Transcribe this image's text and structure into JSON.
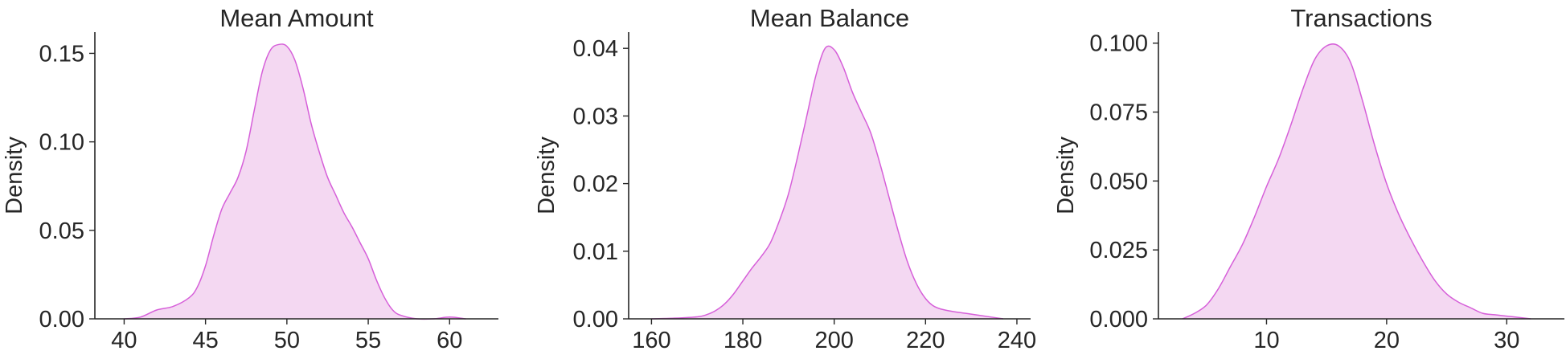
{
  "style": {
    "line_color": "#d65fd9",
    "fill_color": "#f4d8f2",
    "text_color": "#262626"
  },
  "chart_data": [
    {
      "type": "area",
      "title": "Mean Amount",
      "xlabel": "",
      "ylabel": "Density",
      "xlim": [
        38.2,
        63.0
      ],
      "ylim": [
        0,
        0.162
      ],
      "xticks": [
        40,
        45,
        50,
        55,
        60
      ],
      "xtick_labels": [
        "40",
        "45",
        "50",
        "55",
        "60"
      ],
      "yticks": [
        0,
        0.05,
        0.1,
        0.15
      ],
      "ytick_labels": [
        "0.00",
        "0.05",
        "0.10",
        "0.15"
      ],
      "grid": false,
      "x": [
        40.0,
        41.0,
        42.0,
        43.0,
        44.0,
        44.5,
        45.0,
        45.5,
        46.0,
        46.5,
        47.0,
        47.5,
        48.0,
        48.5,
        49.0,
        49.5,
        50.0,
        50.5,
        51.0,
        51.5,
        52.0,
        52.5,
        53.0,
        53.5,
        54.0,
        54.5,
        55.0,
        55.5,
        56.0,
        56.5,
        57.0,
        58.0,
        59.0,
        60.0,
        61.0
      ],
      "y": [
        0.0,
        0.001,
        0.005,
        0.007,
        0.012,
        0.018,
        0.03,
        0.047,
        0.062,
        0.071,
        0.08,
        0.095,
        0.118,
        0.14,
        0.152,
        0.155,
        0.154,
        0.146,
        0.13,
        0.11,
        0.094,
        0.08,
        0.07,
        0.06,
        0.052,
        0.043,
        0.034,
        0.022,
        0.012,
        0.005,
        0.002,
        0.0,
        0.0,
        0.001,
        0.0
      ]
    },
    {
      "type": "area",
      "title": "Mean Balance",
      "xlabel": "",
      "ylabel": "Density",
      "xlim": [
        155,
        243
      ],
      "ylim": [
        0,
        0.0424
      ],
      "xticks": [
        160,
        180,
        200,
        220,
        240
      ],
      "xtick_labels": [
        "160",
        "180",
        "200",
        "220",
        "240"
      ],
      "yticks": [
        0,
        0.01,
        0.02,
        0.03,
        0.04
      ],
      "ytick_labels": [
        "0.00",
        "0.01",
        "0.02",
        "0.03",
        "0.04"
      ],
      "grid": false,
      "x": [
        160,
        165,
        170,
        172,
        174,
        176,
        178,
        180,
        182,
        184,
        186,
        188,
        190,
        192,
        194,
        196,
        198,
        200,
        202,
        204,
        206,
        208,
        210,
        212,
        214,
        216,
        218,
        220,
        222,
        225,
        230,
        235,
        237
      ],
      "y": [
        0.0,
        0.0001,
        0.0003,
        0.0006,
        0.0012,
        0.0022,
        0.0037,
        0.0056,
        0.0075,
        0.0092,
        0.0112,
        0.0145,
        0.0185,
        0.024,
        0.03,
        0.036,
        0.04,
        0.0398,
        0.0372,
        0.0335,
        0.0305,
        0.0275,
        0.023,
        0.018,
        0.013,
        0.0085,
        0.0052,
        0.003,
        0.0018,
        0.0012,
        0.0007,
        0.0002,
        0.0
      ]
    },
    {
      "type": "area",
      "title": "Transactions",
      "xlabel": "",
      "ylabel": "Density",
      "xlim": [
        1.0,
        34.8
      ],
      "ylim": [
        0,
        0.104
      ],
      "xticks": [
        10,
        20,
        30
      ],
      "xtick_labels": [
        "10",
        "20",
        "30"
      ],
      "yticks": [
        0,
        0.025,
        0.05,
        0.075,
        0.1
      ],
      "ytick_labels": [
        "0.000",
        "0.025",
        "0.050",
        "0.075",
        "0.100"
      ],
      "grid": false,
      "x": [
        3,
        4,
        5,
        6,
        7,
        8,
        9,
        10,
        11,
        12,
        13,
        14,
        15,
        16,
        17,
        18,
        19,
        20,
        21,
        22,
        23,
        24,
        25,
        26,
        27,
        28,
        29,
        30,
        31,
        32
      ],
      "y": [
        0.0,
        0.002,
        0.005,
        0.011,
        0.019,
        0.027,
        0.037,
        0.048,
        0.058,
        0.07,
        0.083,
        0.094,
        0.099,
        0.099,
        0.093,
        0.079,
        0.063,
        0.049,
        0.038,
        0.029,
        0.021,
        0.014,
        0.009,
        0.006,
        0.004,
        0.002,
        0.0015,
        0.001,
        0.0005,
        0.0
      ]
    }
  ]
}
